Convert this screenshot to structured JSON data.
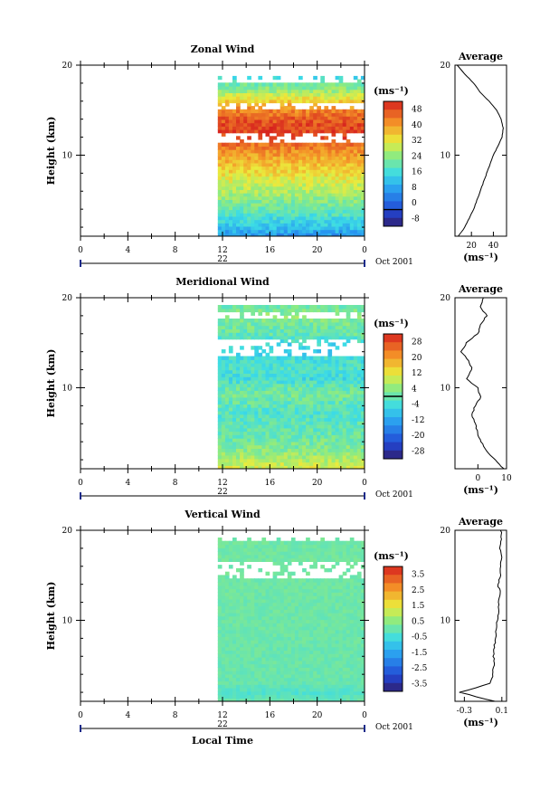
{
  "figure": {
    "xlabel": "Local Time",
    "date_label": "Oct 2001",
    "average_title": "Average",
    "units_label": "(ms⁻¹)"
  },
  "chart_data": [
    {
      "type": "heatmap",
      "title": "Zonal Wind",
      "ylabel": "Height (km)",
      "ylim": [
        1,
        20
      ],
      "yticks": [
        10,
        20
      ],
      "xticks": [
        "0",
        "4",
        "8",
        "12",
        "16",
        "20",
        "0"
      ],
      "xlim_hours": [
        0,
        24
      ],
      "day_label": "22",
      "data_start_hour": 11.6,
      "units": "(ms⁻¹)",
      "colorbar": {
        "min": -8,
        "max": 52,
        "zero_line": 0,
        "ticks": [
          "48",
          "40",
          "32",
          "24",
          "16",
          "8",
          "0",
          "-8"
        ]
      },
      "gaps_km": [
        [
          11.5,
          12.5
        ],
        [
          15,
          16
        ],
        [
          18.2,
          19
        ]
      ],
      "mean_profile": {
        "xlim": [
          5,
          52
        ],
        "xticks": [
          "20",
          "40"
        ],
        "xlabel": "(ms⁻¹)",
        "height_km": [
          1,
          2,
          3,
          4,
          5,
          6,
          7,
          8,
          9,
          10,
          11,
          12,
          13,
          14,
          15,
          16,
          17,
          18,
          19,
          20
        ],
        "values": [
          8,
          14,
          18,
          22,
          25,
          28,
          31,
          34,
          37,
          40,
          44,
          48,
          49,
          47,
          43,
          36,
          28,
          22,
          14,
          7
        ]
      }
    },
    {
      "type": "heatmap",
      "title": "Meridional Wind",
      "ylabel": "Height (km)",
      "ylim": [
        1,
        20
      ],
      "yticks": [
        10,
        20
      ],
      "xticks": [
        "0",
        "4",
        "8",
        "12",
        "16",
        "20",
        "0"
      ],
      "xlim_hours": [
        0,
        24
      ],
      "day_label": "22",
      "data_start_hour": 11.6,
      "units": "(ms⁻¹)",
      "colorbar": {
        "min": -28,
        "max": 28,
        "zero_line": 0,
        "ticks": [
          "28",
          "20",
          "12",
          "4",
          "-4",
          "-12",
          "-20",
          "-28"
        ]
      },
      "gaps_km": [
        [
          13.5,
          15.5
        ],
        [
          17.8,
          18.3
        ]
      ],
      "mean_profile": {
        "xlim": [
          -8,
          10
        ],
        "xticks": [
          "0",
          "10"
        ],
        "xlabel": "(ms⁻¹)",
        "height_km": [
          1,
          2,
          3,
          4,
          5,
          6,
          7,
          8,
          9,
          10,
          11,
          12,
          13,
          14,
          15,
          16,
          17,
          18,
          19,
          20
        ],
        "values": [
          9,
          6,
          3,
          1,
          0,
          -1,
          -2,
          -1,
          1,
          0,
          -4,
          -2,
          -3,
          -6,
          -4,
          0,
          1,
          3,
          1,
          2
        ]
      }
    },
    {
      "type": "heatmap",
      "title": "Vertical Wind",
      "ylabel": "Height (km)",
      "ylim": [
        1,
        20
      ],
      "yticks": [
        10,
        20
      ],
      "xticks": [
        "0",
        "4",
        "8",
        "12",
        "16",
        "20",
        "0"
      ],
      "xlim_hours": [
        0,
        24
      ],
      "day_label": "22",
      "data_start_hour": 11.6,
      "units": "(ms⁻¹)",
      "colorbar": {
        "min": -4,
        "max": 4,
        "zero_line": null,
        "ticks": [
          "3.5",
          "2.5",
          "1.5",
          "0.5",
          "-0.5",
          "-1.5",
          "-2.5",
          "-3.5"
        ]
      },
      "gaps_km": [
        [
          14.5,
          16.5
        ],
        [
          18.8,
          19.5
        ]
      ],
      "mean_profile": {
        "xlim": [
          -0.4,
          0.15
        ],
        "xticks": [
          "-0.3",
          "0.1"
        ],
        "xlabel": "(ms⁻¹)",
        "height_km": [
          1,
          2,
          3,
          4,
          5,
          6,
          7,
          8,
          9,
          10,
          11,
          12,
          13,
          14,
          15,
          16,
          17,
          18,
          19,
          20
        ],
        "values": [
          0.02,
          -0.35,
          -0.02,
          0.0,
          0.02,
          0.01,
          0.02,
          0.03,
          0.04,
          0.05,
          0.07,
          0.06,
          0.08,
          0.06,
          0.09,
          0.08,
          0.1,
          0.08,
          0.1,
          0.09
        ]
      }
    }
  ]
}
